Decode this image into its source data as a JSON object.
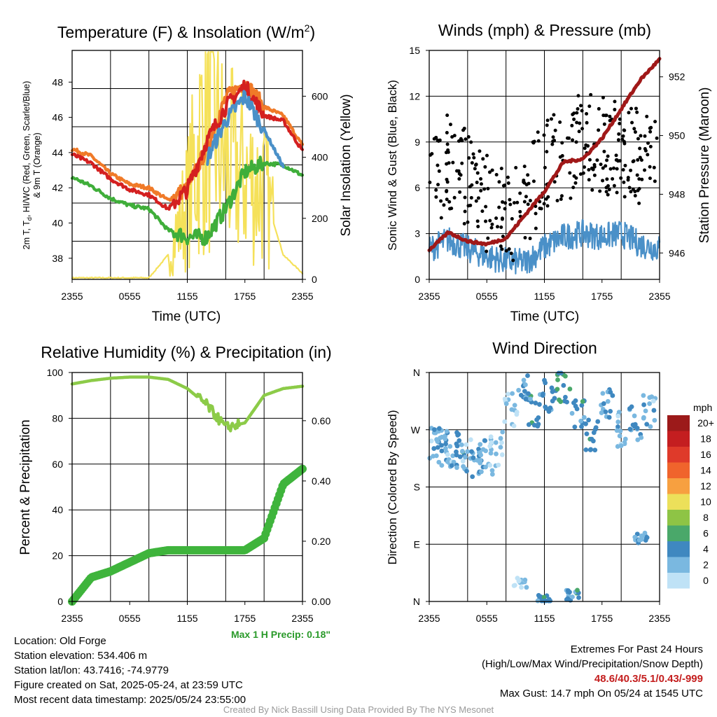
{
  "colors": {
    "red": "#d42020",
    "orange": "#f07a28",
    "green": "#3fae3a",
    "blue": "#4a90c8",
    "yellow": "#f5e15a",
    "maroon": "#a01818",
    "black": "#000000",
    "rh": "#8ccb48",
    "precip": "#3fb43c",
    "max_precip_text": "#2a9a2a",
    "extremes_text": "#c41e1e"
  },
  "x_ticks": [
    "2355",
    "0555",
    "1155",
    "1755",
    "2355"
  ],
  "panels": {
    "temp": {
      "title_main": "Temperature (F) & Insolation (W/m",
      "title_sup": "2",
      "title_end": ")",
      "ylabel_line1": "2m T, T",
      "ylabel_sub": "d",
      "ylabel_line1_end": ", HI/WC (Red, Green, Scarlet/Blue)",
      "ylabel_line2": "& 9m T (Orange)",
      "ylabel_right": "Solar Insolation (Yellow)",
      "xlabel": "Time (UTC)",
      "left_ticks": [
        "38",
        "40",
        "42",
        "44",
        "46",
        "48"
      ],
      "right_ticks": [
        "0",
        "200",
        "400",
        "600"
      ]
    },
    "wind": {
      "title": "Winds (mph) & Pressure (mb)",
      "ylabel_left": "Sonic Wind & Gust (Blue, Black)",
      "ylabel_right": "Station Pressure (Maroon)",
      "xlabel": "Time (UTC)",
      "left_ticks": [
        "0",
        "3",
        "6",
        "9",
        "12",
        "15"
      ],
      "right_ticks": [
        "946",
        "948",
        "950",
        "952"
      ]
    },
    "rh": {
      "title": "Relative Humidity (%) & Precipitation (in)",
      "ylabel_left": "Percent & Precipitation",
      "left_ticks": [
        "0",
        "20",
        "40",
        "60",
        "80",
        "100"
      ],
      "right_ticks": [
        "0.00",
        "0.20",
        "0.40",
        "0.60"
      ],
      "max_precip": "Max 1 H Precip: 0.18\""
    },
    "dir": {
      "title": "Wind Direction",
      "ylabel_left": "Direction (Colored By Speed)",
      "left_ticks": [
        "N",
        "E",
        "S",
        "W",
        "N"
      ],
      "legend_title": "mph",
      "legend_labels": [
        "20+",
        "18",
        "16",
        "14",
        "12",
        "10",
        "8",
        "6",
        "4",
        "2",
        "0"
      ],
      "legend_colors": [
        "#9c1a1a",
        "#c41e20",
        "#df3a2a",
        "#f0642c",
        "#f7a040",
        "#ece05a",
        "#8ec445",
        "#4aa86a",
        "#3f88c0",
        "#7ab8e0",
        "#bfe2f6"
      ]
    }
  },
  "info": {
    "location": "Location: Old Forge",
    "elevation": "Station elevation: 534.406 m",
    "latlon": "Station lat/lon: 43.7416; -74.9779",
    "created": "Figure created on Sat, 2025-05-24, at 23:59 UTC",
    "recent": "Most recent data timestamp: 2025/05/24 23:55:00",
    "extremes_title": "Extremes For Past 24 Hours",
    "extremes_sub": "(High/Low/Max Wind/Precipitation/Snow Depth)",
    "extremes_values": "48.6/40.3/5.1/0.43/-999",
    "max_gust": "Max Gust: 14.7 mph On 05/24 at 1545 UTC",
    "credit": "Created By Nick Bassill Using Data Provided By The NYS Mesonet"
  },
  "chart_data": [
    {
      "type": "line",
      "title": "Temperature (F) & Insolation (W/m2)",
      "xlabel": "Time (UTC)",
      "ylabel": "2m T, Td, HI/WC (Red, Green, Scarlet/Blue) & 9m T (Orange)",
      "ylabel_right": "Solar Insolation (Yellow)",
      "x": [
        0,
        2,
        4,
        6,
        8,
        10,
        12,
        14,
        16,
        18,
        20,
        22,
        24
      ],
      "ylim": [
        36.8,
        49.8
      ],
      "ylim_right": [
        0,
        750
      ],
      "grid": true,
      "series": [
        {
          "name": "2m T",
          "color": "#d42020",
          "values": [
            43.9,
            43.4,
            42.5,
            41.9,
            41.6,
            40.8,
            41.9,
            44.6,
            46.6,
            47.8,
            46.1,
            45.8,
            44.1
          ]
        },
        {
          "name": "9m T",
          "color": "#f07a28",
          "values": [
            44.2,
            43.8,
            42.8,
            42.2,
            42.0,
            41.3,
            42.0,
            44.2,
            47.1,
            48.0,
            46.6,
            46.1,
            44.4
          ]
        },
        {
          "name": "Td",
          "color": "#3fae3a",
          "values": [
            42.6,
            42.1,
            41.4,
            41.0,
            40.8,
            39.6,
            39.2,
            39.2,
            40.8,
            42.9,
            43.4,
            43.3,
            42.7
          ]
        },
        {
          "name": "WC",
          "color": "#4a90c8",
          "values": [
            42.5,
            null,
            null,
            null,
            null,
            null,
            null,
            43.6,
            45.8,
            47.2,
            45.3,
            43.2,
            null
          ]
        },
        {
          "name": "Solar Insolation",
          "axis": "right",
          "color": "#f5e15a",
          "values": [
            5,
            5,
            5,
            5,
            5,
            80,
            250,
            560,
            380,
            340,
            290,
            80,
            20
          ]
        }
      ]
    },
    {
      "type": "line",
      "title": "Winds (mph) & Pressure (mb)",
      "xlabel": "Time (UTC)",
      "ylabel": "Sonic Wind & Gust (Blue, Black)",
      "ylabel_right": "Station Pressure (Maroon)",
      "x": [
        0,
        2,
        4,
        6,
        8,
        10,
        12,
        14,
        16,
        18,
        20,
        22,
        24
      ],
      "ylim": [
        0,
        15
      ],
      "ylim_right": [
        945.1,
        952.9
      ],
      "grid": true,
      "series": [
        {
          "name": "Sonic Wind",
          "color": "#4a90c8",
          "values": [
            2.0,
            2.6,
            2.0,
            1.5,
            1.2,
            1.1,
            2.1,
            2.8,
            3.0,
            2.8,
            3.0,
            2.3,
            2.0
          ]
        },
        {
          "name": "Gust",
          "color": "#000000",
          "values": [
            6.0,
            7.8,
            6.5,
            5.0,
            4.0,
            5.2,
            7.5,
            8.0,
            9.2,
            8.8,
            8.5,
            8.0,
            7.0
          ]
        },
        {
          "name": "Station Pressure",
          "axis": "right",
          "color": "#a01818",
          "values": [
            946.1,
            946.7,
            946.4,
            946.3,
            946.5,
            947.3,
            948.1,
            949.1,
            949.2,
            949.9,
            950.9,
            951.9,
            952.6
          ]
        }
      ]
    },
    {
      "type": "line",
      "title": "Relative Humidity (%) & Precipitation (in)",
      "ylabel": "Percent & Precipitation",
      "x": [
        0,
        2,
        4,
        6,
        8,
        10,
        12,
        14,
        16,
        18,
        20,
        22,
        24
      ],
      "ylim": [
        0,
        100
      ],
      "ylim_right": [
        0,
        0.76
      ],
      "grid": true,
      "series": [
        {
          "name": "Relative Humidity",
          "color": "#8ccb48",
          "values": [
            95,
            96.5,
            97.5,
            98,
            98,
            97,
            93,
            86,
            76,
            78,
            90,
            93,
            94
          ]
        },
        {
          "name": "Precipitation",
          "axis": "right",
          "color": "#3fb43c",
          "values": [
            0.0,
            0.08,
            0.1,
            0.13,
            0.16,
            0.17,
            0.17,
            0.17,
            0.17,
            0.17,
            0.21,
            0.39,
            0.44
          ]
        }
      ]
    },
    {
      "type": "scatter",
      "title": "Wind Direction",
      "ylabel": "Direction (Colored By Speed)",
      "ylim": [
        0,
        360
      ],
      "y_ticks": [
        "N",
        "E",
        "S",
        "W",
        "N"
      ],
      "color_scale_unit": "mph",
      "grid": true,
      "points": [
        {
          "x": 0.5,
          "y": 245,
          "speed": 2
        },
        {
          "x": 1.2,
          "y": 250,
          "speed": 3
        },
        {
          "x": 2.0,
          "y": 240,
          "speed": 2
        },
        {
          "x": 3.0,
          "y": 238,
          "speed": 4
        },
        {
          "x": 4.0,
          "y": 232,
          "speed": 2
        },
        {
          "x": 5.0,
          "y": 222,
          "speed": 3
        },
        {
          "x": 6.0,
          "y": 228,
          "speed": 2
        },
        {
          "x": 7.0,
          "y": 240,
          "speed": 1
        },
        {
          "x": 8.5,
          "y": 300,
          "speed": 1
        },
        {
          "x": 10.0,
          "y": 330,
          "speed": 3
        },
        {
          "x": 11.0,
          "y": 300,
          "speed": 4
        },
        {
          "x": 12.5,
          "y": 320,
          "speed": 4
        },
        {
          "x": 14.0,
          "y": 340,
          "speed": 5
        },
        {
          "x": 15.5,
          "y": 290,
          "speed": 4
        },
        {
          "x": 17.0,
          "y": 260,
          "speed": 4
        },
        {
          "x": 18.5,
          "y": 310,
          "speed": 3
        },
        {
          "x": 20.0,
          "y": 270,
          "speed": 2
        },
        {
          "x": 21.5,
          "y": 280,
          "speed": 3
        },
        {
          "x": 23.0,
          "y": 300,
          "speed": 2
        },
        {
          "x": 9.5,
          "y": 30,
          "speed": 1
        },
        {
          "x": 12.0,
          "y": 2,
          "speed": 4
        },
        {
          "x": 15.0,
          "y": 10,
          "speed": 4
        },
        {
          "x": 22.0,
          "y": 100,
          "speed": 3
        }
      ]
    }
  ]
}
